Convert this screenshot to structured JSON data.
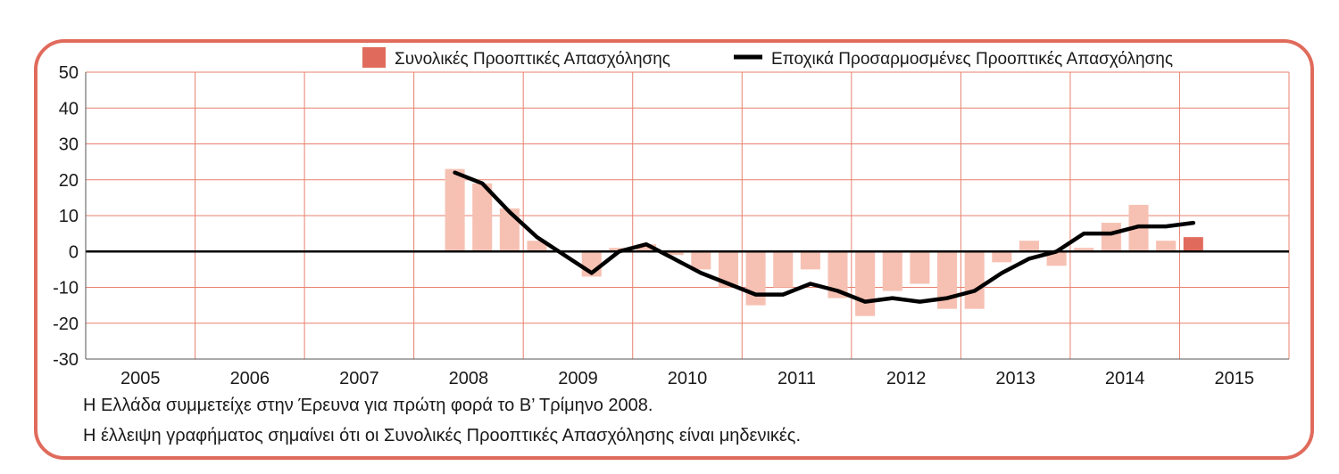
{
  "chart_data": {
    "type": "bar",
    "colors": {
      "bar": "#f6c1b3",
      "bar_highlight": "#e06b5c",
      "line": "#000000",
      "grid": "#e8806f",
      "frame": "#e06b5c"
    },
    "legend": {
      "bar_label": "Συνολικές Προοπτικές Απασχόλησης",
      "line_label": "Εποχικά Προσαρμοσμένες Προοπτικές Απασχόλησης",
      "placement": "top-right"
    },
    "ylim": [
      -30,
      50
    ],
    "yticks": [
      "50",
      "40",
      "30",
      "20",
      "10",
      "0",
      "-10",
      "-20",
      "-30"
    ],
    "ytick_values": [
      50,
      40,
      30,
      20,
      10,
      0,
      -10,
      -20,
      -30
    ],
    "xticks": [
      "2005",
      "2006",
      "2007",
      "2008",
      "2009",
      "2010",
      "2011",
      "2012",
      "2013",
      "2014",
      "2015"
    ],
    "grid": true,
    "quarters": [
      "2008-Q2",
      "2008-Q3",
      "2008-Q4",
      "2009-Q1",
      "2009-Q2",
      "2009-Q3",
      "2009-Q4",
      "2010-Q1",
      "2010-Q2",
      "2010-Q3",
      "2010-Q4",
      "2011-Q1",
      "2011-Q2",
      "2011-Q3",
      "2011-Q4",
      "2012-Q1",
      "2012-Q2",
      "2012-Q3",
      "2012-Q4",
      "2013-Q1",
      "2013-Q2",
      "2013-Q3",
      "2013-Q4",
      "2014-Q1",
      "2014-Q2",
      "2014-Q3",
      "2014-Q4",
      "2015-Q1"
    ],
    "series": [
      {
        "name": "Συνολικές Προοπτικές Απασχόλησης",
        "type": "bar",
        "values": [
          23,
          19,
          12,
          3,
          0,
          -7,
          1,
          2,
          -1,
          -5,
          -10,
          -15,
          -10,
          -5,
          -13,
          -18,
          -11,
          -9,
          -16,
          -16,
          -3,
          3,
          -4,
          1,
          8,
          13,
          3,
          4
        ]
      },
      {
        "name": "Εποχικά Προσαρμοσμένες Προοπτικές Απασχόλησης",
        "type": "line",
        "values": [
          22,
          19,
          11,
          4,
          -1,
          -6,
          0,
          2,
          -2,
          -6,
          -9,
          -12,
          -12,
          -9,
          -11,
          -14,
          -13,
          -14,
          -13,
          -11,
          -6,
          -2,
          0,
          5,
          5,
          7,
          7,
          8
        ]
      }
    ]
  },
  "notes": {
    "line1": "Η Ελλάδα συμμετείχε στην Έρευνα για πρώτη φορά το Β’ Τρίμηνο 2008.",
    "line2": "Η έλλειψη γραφήματος σημαίνει ότι οι Συνολικές Προοπτικές Απασχόλησης είναι μηδενικές."
  }
}
